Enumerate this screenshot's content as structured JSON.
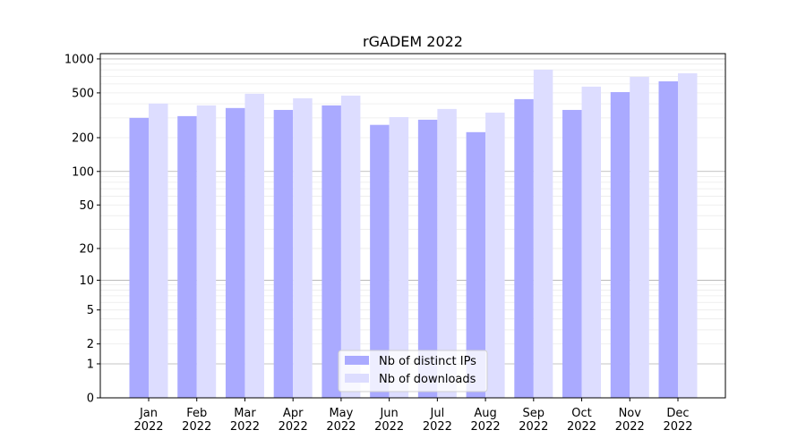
{
  "chart_data": {
    "type": "bar",
    "title": "rGADEM 2022",
    "xlabel": "",
    "ylabel": "",
    "yscale": "log10(1+y)",
    "ylim": [
      0,
      1114
    ],
    "yticks": [
      0,
      1,
      2,
      5,
      10,
      20,
      50,
      100,
      200,
      500,
      1000
    ],
    "grid": true,
    "legend_position": "lower-center",
    "categories": [
      "Jan\n2022",
      "Feb\n2022",
      "Mar\n2022",
      "Apr\n2022",
      "May\n2022",
      "Jun\n2022",
      "Jul\n2022",
      "Aug\n2022",
      "Sep\n2022",
      "Oct\n2022",
      "Nov\n2022",
      "Dec\n2022"
    ],
    "series": [
      {
        "name": "Nb of distinct IPs",
        "color": "#aaaaff",
        "values": [
          300,
          311,
          367,
          353,
          387,
          260,
          289,
          224,
          440,
          353,
          508,
          633
        ]
      },
      {
        "name": "Nb of downloads",
        "color": "#ddddff",
        "values": [
          402,
          387,
          491,
          448,
          473,
          305,
          360,
          334,
          803,
          568,
          694,
          746
        ]
      }
    ]
  }
}
